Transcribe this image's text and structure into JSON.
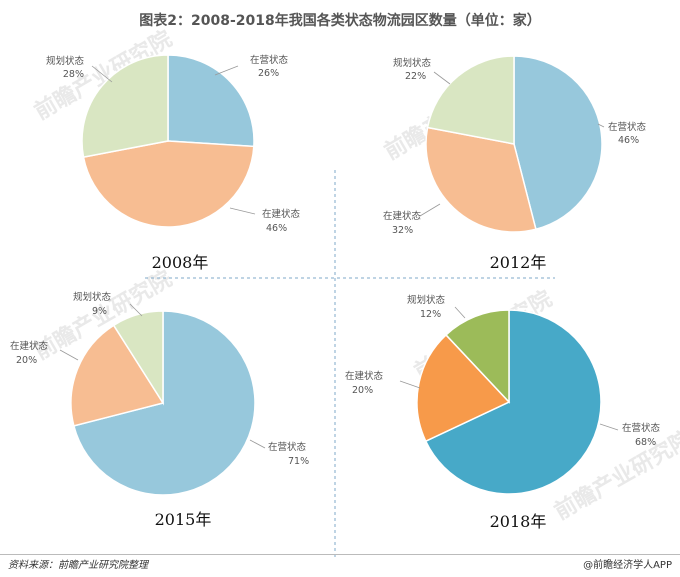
{
  "title": "图表2：2008-2018年我国各类状态物流园区数量（单位：家）",
  "watermark": "前瞻产业研究院",
  "footer": {
    "source": "资料来源：前瞻产业研究院整理",
    "brand": "@前瞻经济学人APP"
  },
  "colors": {
    "light_blue": "#97c8dc",
    "light_orange": "#f7bd92",
    "light_green": "#d9e6c2",
    "blue": "#47a9c8",
    "orange": "#f79a4a",
    "green": "#9cbb59",
    "divider": "#7fa9c9"
  },
  "chart_data": [
    {
      "type": "pie",
      "year": "2008年",
      "slices": [
        {
          "name": "在营状态",
          "value": 26,
          "label": "26%",
          "color": "#97c8dc"
        },
        {
          "name": "在建状态",
          "value": 46,
          "label": "46%",
          "color": "#f7bd92"
        },
        {
          "name": "规划状态",
          "value": 28,
          "label": "28%",
          "color": "#d9e6c2"
        }
      ]
    },
    {
      "type": "pie",
      "year": "2012年",
      "slices": [
        {
          "name": "在营状态",
          "value": 46,
          "label": "46%",
          "color": "#97c8dc"
        },
        {
          "name": "在建状态",
          "value": 32,
          "label": "32%",
          "color": "#f7bd92"
        },
        {
          "name": "规划状态",
          "value": 22,
          "label": "22%",
          "color": "#d9e6c2"
        }
      ]
    },
    {
      "type": "pie",
      "year": "2015年",
      "slices": [
        {
          "name": "在营状态",
          "value": 71,
          "label": "71%",
          "color": "#97c8dc"
        },
        {
          "name": "在建状态",
          "value": 20,
          "label": "20%",
          "color": "#f7bd92"
        },
        {
          "name": "规划状态",
          "value": 9,
          "label": "9%",
          "color": "#d9e6c2"
        }
      ]
    },
    {
      "type": "pie",
      "year": "2018年",
      "slices": [
        {
          "name": "在营状态",
          "value": 68,
          "label": "68%",
          "color": "#47a9c8"
        },
        {
          "name": "在建状态",
          "value": 20,
          "label": "20%",
          "color": "#f79a4a"
        },
        {
          "name": "规划状态",
          "value": 12,
          "label": "12%",
          "color": "#9cbb59"
        }
      ]
    }
  ]
}
